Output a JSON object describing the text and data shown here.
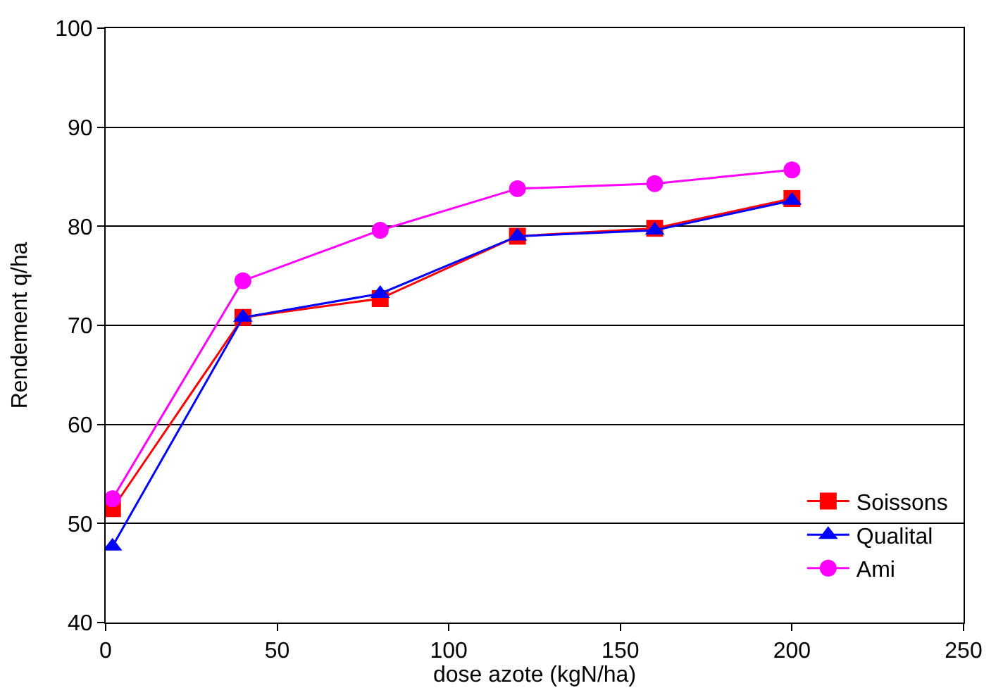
{
  "chart_data": {
    "type": "line",
    "xlabel": "dose azote (kgN/ha)",
    "ylabel": "Rendement q/ha",
    "x": [
      2,
      40,
      80,
      120,
      160,
      200
    ],
    "series": [
      {
        "name": "Soissons",
        "color": "#ff0000",
        "marker": "square",
        "values": [
          51.5,
          70.8,
          72.7,
          79.0,
          79.8,
          82.8
        ]
      },
      {
        "name": "Qualital",
        "color": "#0000ff",
        "marker": "triangle",
        "values": [
          47.7,
          70.8,
          73.2,
          79.0,
          79.6,
          82.6
        ]
      },
      {
        "name": "Ami",
        "color": "#ff00ff",
        "marker": "circle",
        "values": [
          52.5,
          74.5,
          79.6,
          83.8,
          84.3,
          85.7
        ]
      }
    ],
    "xlim": [
      0,
      250
    ],
    "xticks": [
      0,
      50,
      100,
      150,
      200,
      250
    ],
    "ylim": [
      40,
      100
    ],
    "yticks": [
      40,
      50,
      60,
      70,
      80,
      90,
      100
    ],
    "grid": "y",
    "legend": "right",
    "line_style": "solid"
  }
}
